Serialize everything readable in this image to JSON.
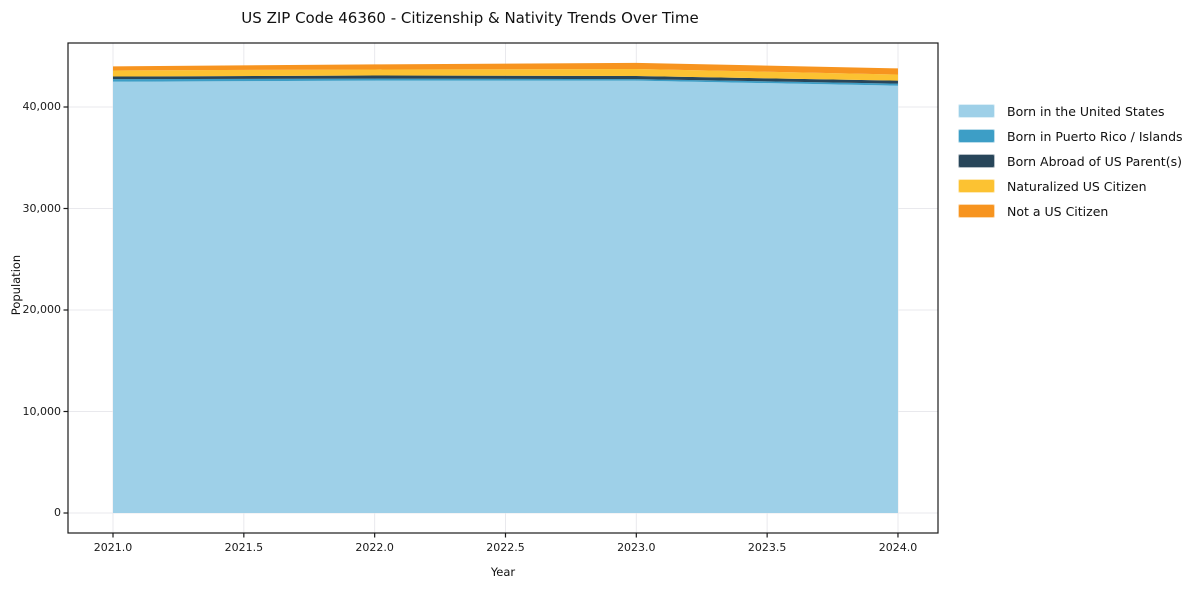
{
  "chart_data": {
    "type": "area",
    "stacked": true,
    "title": "US ZIP Code 46360 - Citizenship & Nativity Trends Over Time",
    "xlabel": "Year",
    "ylabel": "Population",
    "x": [
      2021,
      2022,
      2023,
      2024
    ],
    "series": [
      {
        "name": "Born in the United States",
        "color": "#9ED0E8",
        "values": [
          42500,
          42600,
          42600,
          42100
        ]
      },
      {
        "name": "Born in Puerto Rico / Islands",
        "color": "#3D9EC6",
        "values": [
          250,
          200,
          150,
          200
        ]
      },
      {
        "name": "Born Abroad of US Parent(s)",
        "color": "#28465A",
        "values": [
          250,
          300,
          300,
          300
        ]
      },
      {
        "name": "Naturalized US Citizen",
        "color": "#FCC232",
        "values": [
          600,
          600,
          700,
          600
        ]
      },
      {
        "name": "Not a US Citizen",
        "color": "#F7941F",
        "values": [
          400,
          500,
          600,
          600
        ]
      }
    ],
    "x_ticks": [
      "2021.0",
      "2021.5",
      "2022.0",
      "2022.5",
      "2023.0",
      "2023.5",
      "2024.0"
    ],
    "x_tick_values": [
      2021,
      2021.5,
      2022,
      2022.5,
      2023,
      2023.5,
      2024
    ],
    "y_ticks": [
      "0",
      "10,000",
      "20,000",
      "30,000",
      "40,000"
    ],
    "y_tick_values": [
      0,
      10000,
      20000,
      30000,
      40000
    ],
    "xlim": [
      2020.828,
      2024.153
    ],
    "ylim": [
      -1970,
      46306
    ],
    "grid": true,
    "grid_color": "#e9e9ed",
    "spine_color": "#1a1a1a",
    "legend_position": "right-outside"
  }
}
